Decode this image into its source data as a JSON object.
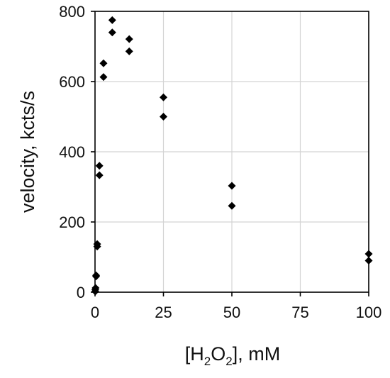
{
  "chart_data": {
    "type": "scatter",
    "xlabel_parts": [
      "[H",
      "2",
      "O",
      "2",
      "], mM"
    ],
    "ylabel": "velocity, kcts/s",
    "xlim": [
      0,
      100
    ],
    "ylim": [
      0,
      800
    ],
    "x_ticks": [
      0,
      25,
      50,
      75,
      100
    ],
    "y_ticks": [
      0,
      200,
      400,
      600,
      800
    ],
    "grid": true,
    "marker": "diamond",
    "series": [
      {
        "color": "#000000",
        "points": [
          [
            0.1,
            2
          ],
          [
            0.1,
            7
          ],
          [
            0.2,
            12
          ],
          [
            0.4,
            45
          ],
          [
            0.4,
            48
          ],
          [
            0.8,
            130
          ],
          [
            0.8,
            137
          ],
          [
            1.6,
            333
          ],
          [
            1.6,
            360
          ],
          [
            3.1,
            613
          ],
          [
            3.1,
            652
          ],
          [
            6.3,
            740
          ],
          [
            6.3,
            775
          ],
          [
            12.5,
            686
          ],
          [
            12.5,
            721
          ],
          [
            25,
            500
          ],
          [
            25,
            555
          ],
          [
            50,
            246
          ],
          [
            50,
            303
          ],
          [
            100,
            90
          ],
          [
            100,
            109
          ]
        ]
      }
    ]
  }
}
